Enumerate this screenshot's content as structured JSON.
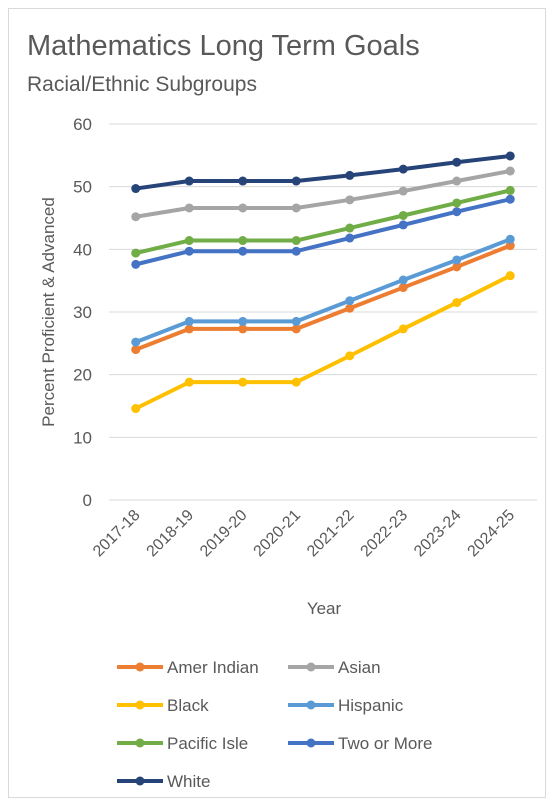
{
  "chart_data": {
    "type": "line",
    "title": "Mathematics Long Term Goals",
    "subtitle": "Racial/Ethnic Subgroups",
    "xlabel": "Year",
    "ylabel": "Percent Proficient & Advanced",
    "ylim": [
      0,
      60
    ],
    "yticks": [
      0,
      10,
      20,
      30,
      40,
      50,
      60
    ],
    "grid": "horizontal",
    "legend_position": "bottom",
    "categories": [
      "2017-18",
      "2018-19",
      "2019-20",
      "2020-21",
      "2021-22",
      "2022-23",
      "2023-24",
      "2024-25"
    ],
    "series": [
      {
        "name": "Amer Indian",
        "color": "#ED7D31",
        "values": [
          24.0,
          27.3,
          27.3,
          27.3,
          30.6,
          33.9,
          37.2,
          40.6
        ]
      },
      {
        "name": "Asian",
        "color": "#A5A5A5",
        "values": [
          45.2,
          46.6,
          46.6,
          46.6,
          47.9,
          49.3,
          50.9,
          52.5
        ]
      },
      {
        "name": "Black",
        "color": "#FFC000",
        "values": [
          14.6,
          18.8,
          18.8,
          18.8,
          23.0,
          27.3,
          31.5,
          35.8
        ]
      },
      {
        "name": "Hispanic",
        "color": "#5B9BD5",
        "values": [
          25.2,
          28.5,
          28.5,
          28.5,
          31.8,
          35.1,
          38.3,
          41.6
        ]
      },
      {
        "name": "Pacific Isle",
        "color": "#70AD47",
        "values": [
          39.4,
          41.4,
          41.4,
          41.4,
          43.4,
          45.4,
          47.4,
          49.4
        ]
      },
      {
        "name": "Two or More",
        "color": "#4472C4",
        "values": [
          37.6,
          39.7,
          39.7,
          39.7,
          41.8,
          43.9,
          46.0,
          48.0
        ]
      },
      {
        "name": "White",
        "color": "#264478",
        "values": [
          49.7,
          50.9,
          50.9,
          50.9,
          51.8,
          52.8,
          53.9,
          54.9
        ]
      }
    ]
  }
}
